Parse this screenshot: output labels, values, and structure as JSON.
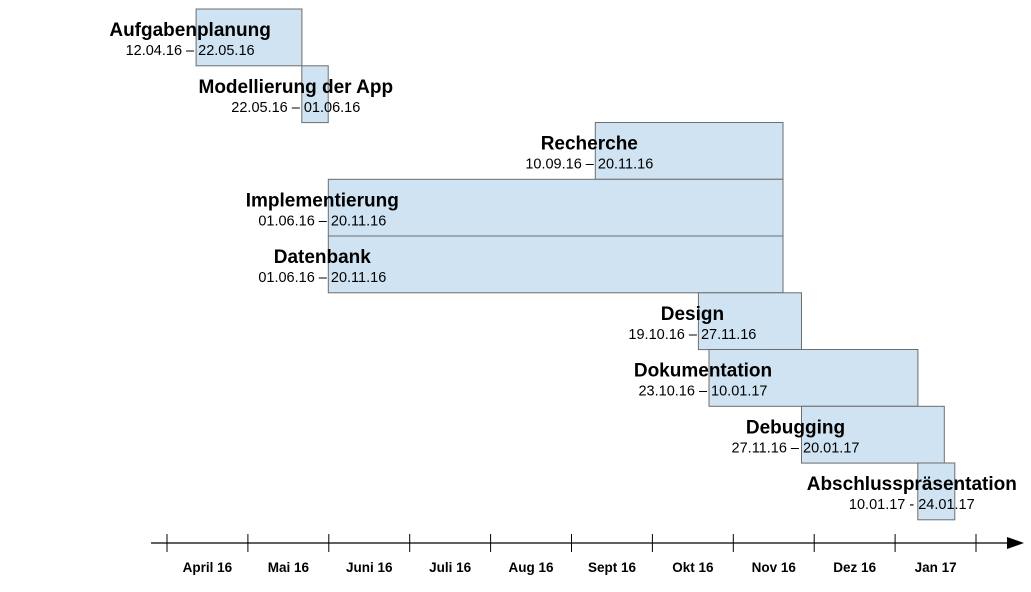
{
  "chart_data": {
    "type": "gantt",
    "title": "",
    "tasks": [
      {
        "name": "Aufgabenplanung",
        "dates_label": "12.04.16 – 22.05.16",
        "start": "2016-04-12",
        "end": "2016-05-22"
      },
      {
        "name": "Modellierung der App",
        "dates_label": "22.05.16 – 01.06.16",
        "start": "2016-05-22",
        "end": "2016-06-01"
      },
      {
        "name": "Recherche",
        "dates_label": "10.09.16 – 20.11.16",
        "start": "2016-09-10",
        "end": "2016-11-20"
      },
      {
        "name": "Implementierung",
        "dates_label": "01.06.16 – 20.11.16",
        "start": "2016-06-01",
        "end": "2016-11-20"
      },
      {
        "name": "Datenbank",
        "dates_label": "01.06.16 – 20.11.16",
        "start": "2016-06-01",
        "end": "2016-11-20"
      },
      {
        "name": "Design",
        "dates_label": "19.10.16 – 27.11.16",
        "start": "2016-10-19",
        "end": "2016-11-27"
      },
      {
        "name": "Dokumentation",
        "dates_label": "23.10.16 – 10.01.17",
        "start": "2016-10-23",
        "end": "2017-01-10"
      },
      {
        "name": "Debugging",
        "dates_label": "27.11.16 – 20.01.17",
        "start": "2016-11-27",
        "end": "2017-01-20"
      },
      {
        "name": "Abschlusspräsentation",
        "dates_label": "10.01.17 - 24.01.17",
        "start": "2017-01-10",
        "end": "2017-01-24"
      }
    ],
    "axis": {
      "months": [
        "April 16",
        "Mai 16",
        "Juni 16",
        "Juli 16",
        "Aug 16",
        "Sept 16",
        "Okt 16",
        "Nov 16",
        "Dez 16",
        "Jan 17"
      ],
      "range": [
        "2016-04-01",
        "2017-02-01"
      ]
    },
    "colors": {
      "bar_fill": "#d0e3f2",
      "bar_stroke": "#6d6d6d",
      "axis": "#000000"
    }
  }
}
